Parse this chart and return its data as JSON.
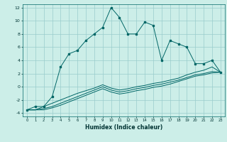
{
  "xlabel": "Humidex (Indice chaleur)",
  "background_color": "#cceee8",
  "grid_color": "#99cccc",
  "line_color": "#006666",
  "xlim": [
    -0.5,
    23.5
  ],
  "ylim": [
    -4.5,
    12.5
  ],
  "xticks": [
    0,
    1,
    2,
    3,
    4,
    5,
    6,
    7,
    8,
    9,
    10,
    11,
    12,
    13,
    14,
    15,
    16,
    17,
    18,
    19,
    20,
    21,
    22,
    23
  ],
  "yticks": [
    -4,
    -2,
    0,
    2,
    4,
    6,
    8,
    10,
    12
  ],
  "s1_x": [
    0,
    1,
    2,
    3,
    4,
    5,
    6,
    7,
    8,
    9,
    10,
    11,
    12,
    13,
    14,
    15,
    16,
    17,
    18,
    19,
    20,
    21,
    22,
    23
  ],
  "s1_y": [
    -3.5,
    -3.0,
    -3.0,
    -1.5,
    3.0,
    5.0,
    5.5,
    7.0,
    8.0,
    9.0,
    12.0,
    10.5,
    8.0,
    8.0,
    9.8,
    9.3,
    4.0,
    7.0,
    6.5,
    6.0,
    3.5,
    3.5,
    4.0,
    2.2
  ],
  "s2_x": [
    0,
    1,
    2,
    3,
    4,
    5,
    6,
    7,
    8,
    9,
    10,
    11,
    12,
    13,
    14,
    15,
    16,
    17,
    18,
    19,
    20,
    21,
    22,
    23
  ],
  "s2_y": [
    -3.5,
    -3.5,
    -3.0,
    -2.5,
    -2.0,
    -1.5,
    -1.0,
    -0.6,
    -0.2,
    0.3,
    -0.2,
    -0.5,
    -0.3,
    0.0,
    0.2,
    0.5,
    0.7,
    1.0,
    1.3,
    1.8,
    2.2,
    2.5,
    3.0,
    2.2
  ],
  "s3_x": [
    0,
    1,
    2,
    3,
    4,
    5,
    6,
    7,
    8,
    9,
    10,
    11,
    12,
    13,
    14,
    15,
    16,
    17,
    18,
    19,
    20,
    21,
    22,
    23
  ],
  "s3_y": [
    -3.5,
    -3.5,
    -3.3,
    -3.0,
    -2.5,
    -2.0,
    -1.5,
    -1.0,
    -0.5,
    0.0,
    -0.5,
    -0.8,
    -0.6,
    -0.3,
    -0.1,
    0.2,
    0.4,
    0.7,
    1.0,
    1.4,
    1.8,
    2.0,
    2.3,
    2.2
  ],
  "s4_x": [
    0,
    1,
    2,
    3,
    4,
    5,
    6,
    7,
    8,
    9,
    10,
    11,
    12,
    13,
    14,
    15,
    16,
    17,
    18,
    19,
    20,
    21,
    22,
    23
  ],
  "s4_y": [
    -3.5,
    -3.5,
    -3.5,
    -3.2,
    -2.8,
    -2.3,
    -1.8,
    -1.3,
    -0.8,
    -0.3,
    -0.8,
    -1.1,
    -0.9,
    -0.6,
    -0.4,
    -0.1,
    0.1,
    0.4,
    0.8,
    1.2,
    1.6,
    1.8,
    2.1,
    2.2
  ]
}
